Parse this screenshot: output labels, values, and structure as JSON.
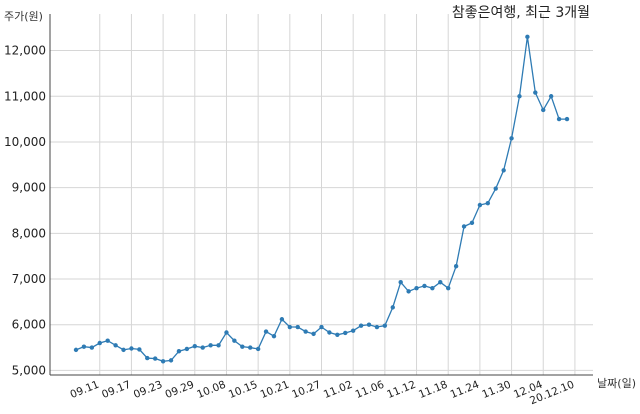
{
  "chart_data": {
    "type": "line",
    "title": "참좋은여행, 최근 3개월",
    "xlabel": "날짜(일)",
    "ylabel": "주가(원)",
    "ylim": [
      4900,
      12800
    ],
    "yticks": [
      5000,
      6000,
      7000,
      8000,
      9000,
      10000,
      11000,
      12000
    ],
    "ytick_labels": [
      "5,000",
      "6,000",
      "7,000",
      "8,000",
      "9,000",
      "10,000",
      "11,000",
      "12,000"
    ],
    "xtick_labels": [
      "09.11",
      "09.17",
      "09.23",
      "09.29",
      "10.08",
      "10.15",
      "10.21",
      "10.27",
      "11.02",
      "11.06",
      "11.12",
      "11.18",
      "11.24",
      "11.30",
      "12.04",
      "20.12.10"
    ],
    "xtick_positions": [
      3,
      7,
      11,
      15,
      19,
      23,
      27,
      31,
      35,
      39,
      43,
      47,
      51,
      55,
      59,
      63
    ],
    "grid": true,
    "color": "#2e7bb4",
    "series": [
      {
        "values": [
          5450,
          5520,
          5500,
          5600,
          5650,
          5550,
          5450,
          5480,
          5460,
          5270,
          5260,
          5200,
          5220,
          5420,
          5470,
          5530,
          5500,
          5550,
          5550,
          5830,
          5650,
          5520,
          5500,
          5470,
          5850,
          5750,
          6120,
          5950,
          5950,
          5850,
          5800,
          5950,
          5830,
          5780,
          5820,
          5870,
          5980,
          6000,
          5950,
          5980,
          6380,
          6930,
          6730,
          6800,
          6850,
          6800,
          6930,
          6800,
          7280,
          8150,
          8230,
          8620,
          8660,
          8980,
          9380,
          10080,
          11000,
          12300,
          11080,
          10700,
          11000,
          10500,
          10500
        ]
      }
    ]
  }
}
